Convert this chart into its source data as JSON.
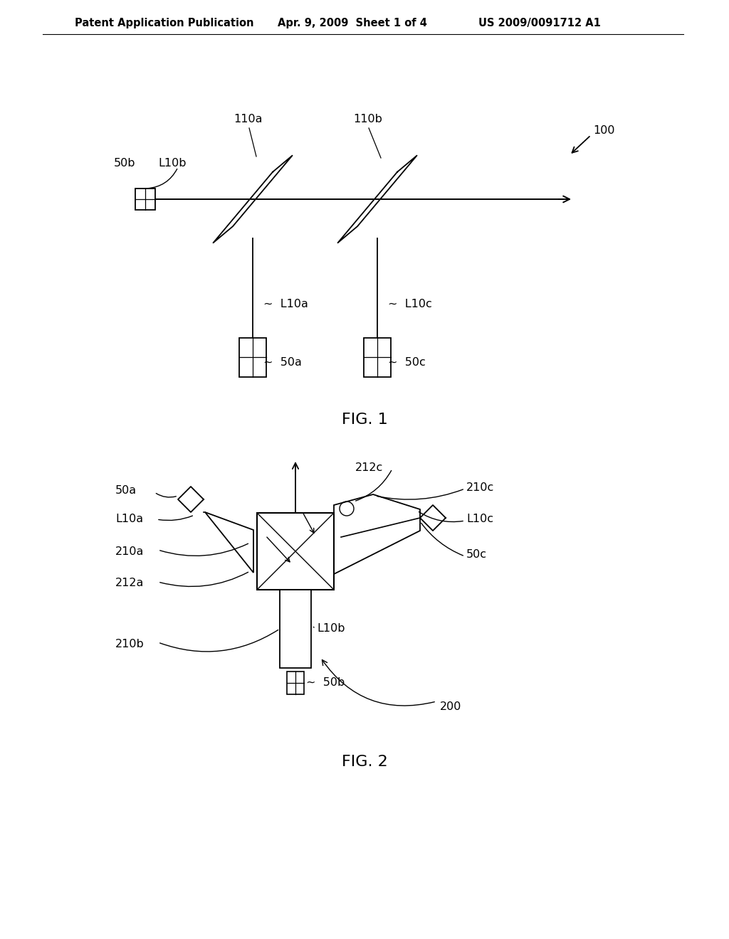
{
  "background_color": "#ffffff",
  "header_text": "Patent Application Publication",
  "header_date": "Apr. 9, 2009  Sheet 1 of 4",
  "header_patent": "US 2009/0091712 A1",
  "text_color": "#000000",
  "line_color": "#000000",
  "fig1_label": "FIG. 1",
  "fig2_label": "FIG. 2"
}
